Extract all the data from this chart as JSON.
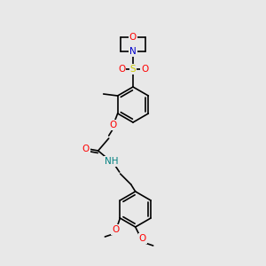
{
  "bg_color": "#e8e8e8",
  "bond_color": "#000000",
  "atom_colors": {
    "O": "#ff0000",
    "N": "#0000cc",
    "S": "#cccc00",
    "NH": "#008080",
    "C": "#000000"
  }
}
